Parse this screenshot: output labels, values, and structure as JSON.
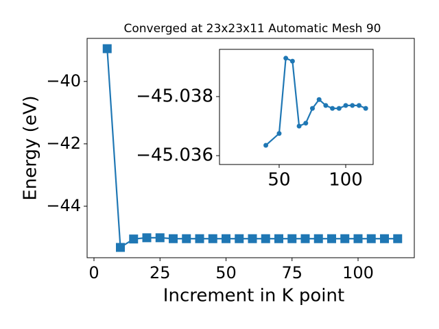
{
  "chart_data": [
    {
      "type": "line",
      "title": "Converged at 23x23x11 Automatic Mesh 90",
      "xlabel": "Increment in K point",
      "ylabel": "Energy (eV)",
      "x": [
        5,
        10,
        15,
        20,
        25,
        30,
        35,
        40,
        45,
        50,
        55,
        60,
        65,
        70,
        75,
        80,
        85,
        90,
        95,
        100,
        105,
        110,
        115
      ],
      "series": [
        {
          "color": "#1f77b4",
          "values": [
            -38.95,
            -45.32,
            -45.05,
            -45.01,
            -45.01,
            -45.04,
            -45.04,
            -45.04,
            -45.04,
            -45.04,
            -45.04,
            -45.04,
            -45.04,
            -45.04,
            -45.04,
            -45.04,
            -45.04,
            -45.04,
            -45.04,
            -45.04,
            -45.04,
            -45.04,
            -45.04
          ]
        }
      ],
      "marker": "square",
      "xlim": [
        -2.6,
        121.3
      ],
      "ylim": [
        -45.65,
        -38.62
      ],
      "xticks": [
        0,
        25,
        50,
        75,
        100
      ],
      "yticks": [
        {
          "value": -40,
          "label": "−40"
        },
        {
          "value": -42,
          "label": "−42"
        },
        {
          "value": -44,
          "label": "−44"
        }
      ]
    },
    {
      "type": "line",
      "x": [
        40,
        50,
        55,
        60,
        65,
        70,
        75,
        80,
        85,
        90,
        95,
        100,
        105,
        110,
        115
      ],
      "series": [
        {
          "color": "#1f77b4",
          "values": [
            -45.03635,
            -45.03675,
            -45.0393,
            -45.0392,
            -45.037,
            -45.0371,
            -45.0376,
            -45.0379,
            -45.0377,
            -45.0376,
            -45.0376,
            -45.0377,
            -45.0377,
            -45.0377,
            -45.0376
          ]
        }
      ],
      "marker": "circle",
      "xlim": [
        5.2,
        120.6
      ],
      "ylim": [
        -45.0357,
        -45.0396
      ],
      "xticks": [
        50,
        100
      ],
      "yticks": [
        {
          "value": -45.038,
          "label": "−45.038"
        },
        {
          "value": -45.036,
          "label": "−45.036"
        }
      ]
    }
  ]
}
